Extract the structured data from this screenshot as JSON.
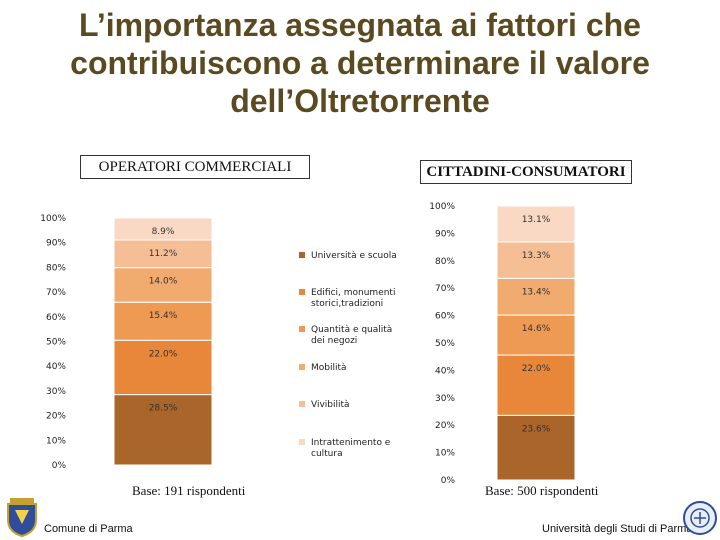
{
  "title": "L’importanza assegnata ai fattori che contribuiscono a determinare il valore dell’Oltretorrente",
  "labels": {
    "operatori": "OPERATORI COMMERCIALI",
    "cittadini": "CITTADINI-CONSUMATORI"
  },
  "bases": {
    "operatori": "Base: 191 rispondenti",
    "cittadini": "Base: 500 rispondenti"
  },
  "footer": {
    "left": "Comune di Parma",
    "right": "Università degli Studi di Parma"
  },
  "colors": {
    "Università e scuola": "#a9652a",
    "Edifici, monumenti storici,tradizioni": "#e8873a",
    "Quantità e qualità dei negozi": "#ee9a52",
    "Mobilità": "#f2ab6e",
    "Vivibilità": "#f6be94",
    "Intrattenimento e cultura": "#f9d8c4"
  },
  "chart_data": [
    {
      "type": "bar",
      "stacked": true,
      "name": "OPERATORI COMMERCIALI",
      "ylim": [
        0,
        100
      ],
      "yticks": [
        "0%",
        "10%",
        "20%",
        "30%",
        "40%",
        "50%",
        "60%",
        "70%",
        "80%",
        "90%",
        "100%"
      ],
      "series": [
        {
          "name": "Università e scuola",
          "values": [
            28.5
          ],
          "label": "28.5%"
        },
        {
          "name": "Edifici, monumenti storici,tradizioni",
          "values": [
            22.0
          ],
          "label": "22.0%"
        },
        {
          "name": "Quantità e qualità dei negozi",
          "values": [
            15.4
          ],
          "label": "15.4%"
        },
        {
          "name": "Mobilità",
          "values": [
            14.0
          ],
          "label": "14.0%"
        },
        {
          "name": "Vivibilità",
          "values": [
            11.2
          ],
          "label": "11.2%"
        },
        {
          "name": "Intrattenimento e cultura",
          "values": [
            8.9
          ],
          "label": "8.9%"
        }
      ],
      "base": "Base: 191 rispondenti"
    },
    {
      "type": "bar",
      "stacked": true,
      "name": "CITTADINI-CONSUMATORI",
      "ylim": [
        0,
        100
      ],
      "yticks": [
        "0%",
        "10%",
        "20%",
        "30%",
        "40%",
        "50%",
        "60%",
        "70%",
        "80%",
        "90%",
        "100%"
      ],
      "series": [
        {
          "name": "Università e scuola",
          "values": [
            23.6
          ],
          "label": "23.6%"
        },
        {
          "name": "Edifici, monumenti storici,tradizioni",
          "values": [
            22.0
          ],
          "label": "22.0%"
        },
        {
          "name": "Quantità e qualità dei negozi",
          "values": [
            14.6
          ],
          "label": "14.6%"
        },
        {
          "name": "Mobilità",
          "values": [
            13.4
          ],
          "label": "13.4%"
        },
        {
          "name": "Vivibilità",
          "values": [
            13.3
          ],
          "label": "13.3%"
        },
        {
          "name": "Intrattenimento e cultura",
          "values": [
            13.1
          ],
          "label": "13.1%"
        }
      ],
      "base": "Base: 500 rispondenti"
    }
  ],
  "legend": [
    "Università e scuola",
    "Edifici, monumenti storici,tradizioni",
    "Quantità e qualità dei negozi",
    "Mobilità",
    "Vivibilità",
    "Intrattenimento e cultura"
  ]
}
